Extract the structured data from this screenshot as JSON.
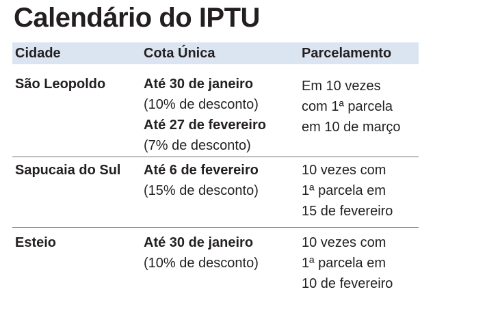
{
  "title": "Calendário do IPTU",
  "table": {
    "headers": [
      "Cidade",
      "Cota Única",
      "Parcelamento"
    ],
    "rows": [
      {
        "city": "São Leopoldo",
        "cota": [
          {
            "date": "Até 30 de janeiro",
            "discount": "(10% de desconto)"
          },
          {
            "date": "Até 27 de fevereiro",
            "discount": "(7% de desconto)"
          }
        ],
        "parcelamento": [
          "Em 10 vezes",
          "com 1ª parcela",
          "em 10 de março"
        ]
      },
      {
        "city": "Sapucaia do Sul",
        "cota": [
          {
            "date": "Até 6 de fevereiro",
            "discount": "(15% de desconto)"
          }
        ],
        "parcelamento": [
          "10 vezes com",
          "1ª parcela em",
          "15 de fevereiro"
        ]
      },
      {
        "city": "Esteio",
        "cota": [
          {
            "date": "Até 30 de janeiro",
            "discount": "(10% de desconto)"
          }
        ],
        "parcelamento": [
          "10 vezes com",
          "1ª parcela em",
          "10 de fevereiro"
        ]
      }
    ]
  }
}
